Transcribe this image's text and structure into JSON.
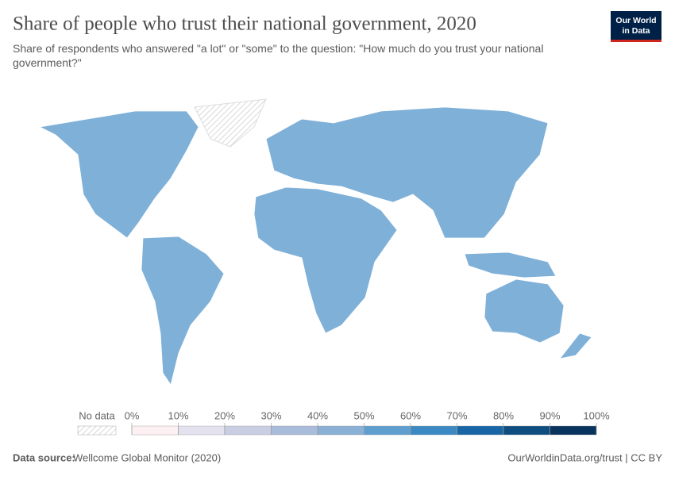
{
  "header": {
    "title": "Share of people who trust their national government, 2020",
    "subtitle": "Share of respondents who answered \"a lot\" or \"some\" to the question: \"How much do you trust your national government?\"",
    "logo": [
      "Our World",
      "in Data"
    ]
  },
  "legend": {
    "no_data": "No data",
    "ticks": [
      {
        "value": 0,
        "label": "0%"
      },
      {
        "value": 10,
        "label": "10%"
      },
      {
        "value": 20,
        "label": "20%"
      },
      {
        "value": 30,
        "label": "30%"
      },
      {
        "value": 40,
        "label": "40%"
      },
      {
        "value": 50,
        "label": "50%"
      },
      {
        "value": 60,
        "label": "60%"
      },
      {
        "value": 70,
        "label": "70%"
      },
      {
        "value": 80,
        "label": "80%"
      },
      {
        "value": 90,
        "label": "90%"
      },
      {
        "value": 100,
        "label": "100%"
      }
    ],
    "colors": [
      "#fdf0f2",
      "#e4e2ef",
      "#c9cee3",
      "#a9bcd9",
      "#8bb0d6",
      "#5f9fd0",
      "#3b89c2",
      "#1866a5",
      "#0d4d80",
      "#08335c"
    ]
  },
  "footer": {
    "source_label": "Data source:",
    "source": "Wellcome Global Monitor (2020)",
    "url": "OurWorldinData.org/trust | CC BY"
  }
}
